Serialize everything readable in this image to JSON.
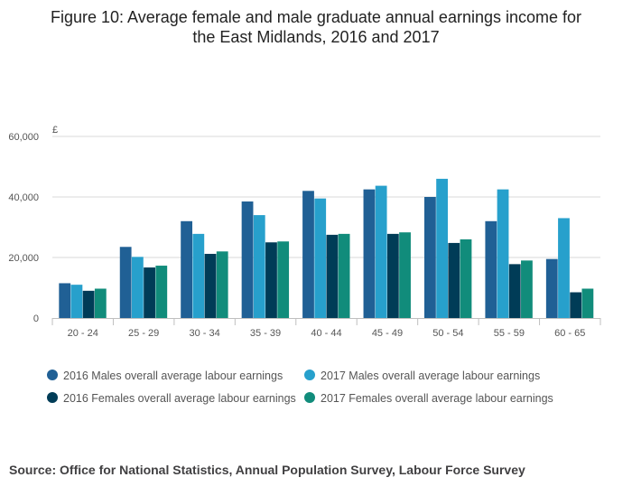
{
  "title_lines": [
    "Figure 10: Average female and male graduate annual earnings income for",
    "the East Midlands, 2016 and 2017"
  ],
  "source": "Source: Office for National Statistics, Annual Population Survey, Labour Force Survey",
  "chart_data": {
    "type": "bar",
    "title": "Figure 10: Average female and male graduate annual earnings income for the East Midlands, 2016 and 2017",
    "ylabel": "£",
    "xlabel": "",
    "ylim": [
      0,
      60000
    ],
    "yticks": [
      0,
      20000,
      40000,
      60000
    ],
    "ytick_labels": [
      "0",
      "20,000",
      "40,000",
      "60,000"
    ],
    "grid": true,
    "legend_position": "bottom",
    "categories": [
      "20 - 24",
      "25 - 29",
      "30 - 34",
      "35 - 39",
      "40 - 44",
      "45 - 49",
      "50 - 54",
      "55 - 59",
      "60 - 65"
    ],
    "series": [
      {
        "name": "2016 Males overall average labour earnings",
        "color": "#206095",
        "values": [
          11500,
          23500,
          32000,
          38500,
          42000,
          42500,
          40000,
          32000,
          19500
        ]
      },
      {
        "name": "2017 Males overall average labour earnings",
        "color": "#27a0cc",
        "values": [
          11000,
          20200,
          27800,
          34000,
          39500,
          43700,
          46000,
          42500,
          33000
        ]
      },
      {
        "name": "2016 Females overall average labour earnings",
        "color": "#003c57",
        "values": [
          9000,
          16700,
          21200,
          25000,
          27500,
          27800,
          24800,
          17800,
          8500
        ]
      },
      {
        "name": "2017 Females overall average labour earnings",
        "color": "#118c7b",
        "values": [
          9700,
          17300,
          22000,
          25300,
          27800,
          28300,
          26000,
          19000,
          9700
        ]
      }
    ]
  }
}
